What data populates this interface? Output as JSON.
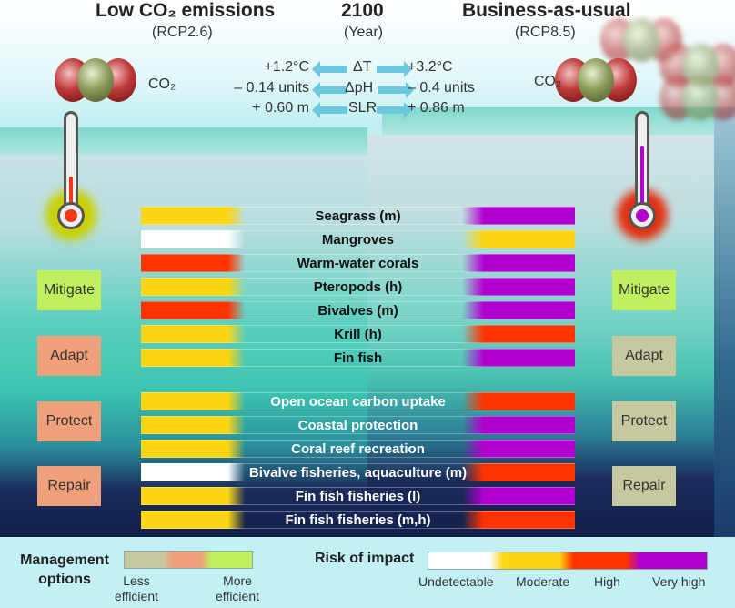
{
  "header": {
    "left_title": "Low CO₂ emissions",
    "left_sub": "(RCP2.6)",
    "center_title": "2100",
    "center_sub": "(Year)",
    "right_title": "Business-as-usual",
    "right_sub": "(RCP8.5)"
  },
  "co2_label": "CO₂",
  "params": [
    {
      "left": "+1.2°C",
      "name": "ΔT",
      "right": "+3.2°C"
    },
    {
      "left": "– 0.14 units",
      "name": "ΔpH",
      "right": "– 0.4 units"
    },
    {
      "left": "+ 0.60 m",
      "name": "SLR",
      "right": "+ 0.86 m"
    }
  ],
  "options_left": [
    {
      "label": "Mitigate",
      "efficiency": "more"
    },
    {
      "label": "Adapt",
      "efficiency": "medium"
    },
    {
      "label": "Protect",
      "efficiency": "medium"
    },
    {
      "label": "Repair",
      "efficiency": "medium"
    }
  ],
  "options_right": [
    {
      "label": "Mitigate",
      "efficiency": "more"
    },
    {
      "label": "Adapt",
      "efficiency": "less"
    },
    {
      "label": "Protect",
      "efficiency": "less"
    },
    {
      "label": "Repair",
      "efficiency": "less"
    }
  ],
  "rows": [
    {
      "label": "Seagrass (m)",
      "low": "moderate",
      "high": "very_high"
    },
    {
      "label": "Mangroves",
      "low": "undetectable",
      "high": "moderate"
    },
    {
      "label": "Warm-water corals",
      "low": "high",
      "high": "very_high"
    },
    {
      "label": "Pteropods (h)",
      "low": "moderate",
      "high": "very_high"
    },
    {
      "label": "Bivalves (m)",
      "low": "high",
      "high": "very_high"
    },
    {
      "label": "Krill (h)",
      "low": "moderate",
      "high": "high"
    },
    {
      "label": "Fin fish",
      "low": "moderate",
      "high": "very_high"
    },
    {
      "label": "Open ocean carbon uptake",
      "low": "moderate",
      "high": "high"
    },
    {
      "label": "Coastal protection",
      "low": "moderate",
      "high": "very_high"
    },
    {
      "label": "Coral reef recreation",
      "low": "moderate",
      "high": "very_high"
    },
    {
      "label": "Bivalve fisheries, aquaculture (m)",
      "low": "undetectable",
      "high": "high"
    },
    {
      "label": "Fin fish fisheries (l)",
      "low": "moderate",
      "high": "very_high"
    },
    {
      "label": "Fin fish fisheries (m,h)",
      "low": "moderate",
      "high": "high"
    }
  ],
  "legend": {
    "management_title": "Management options",
    "less": "Less efficient",
    "more": "More efficient",
    "risk_title": "Risk of impact",
    "levels": [
      "Undetectable",
      "Moderate",
      "High",
      "Very high"
    ]
  },
  "colors": {
    "undetectable": "#ffffff",
    "moderate": "#fcd612",
    "high": "#ff3300",
    "very_high": "#b000d0",
    "eff_less": "#c8c8a0",
    "eff_medium": "#f0a07a",
    "eff_more": "#c0f060"
  }
}
